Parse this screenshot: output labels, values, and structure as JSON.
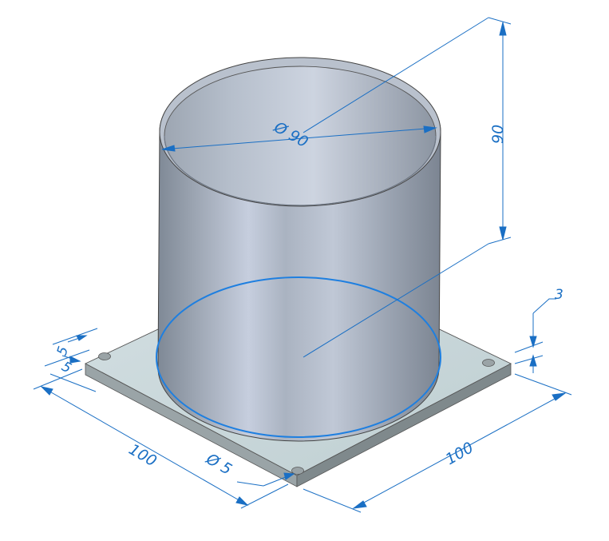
{
  "drawing": {
    "colors": {
      "dimension": "#1a6fc4",
      "plate_top": "#c9d8da",
      "plate_edge": "#8d9699",
      "cylinder_dark": "#7e8894",
      "cylinder_light": "#c3cbd8",
      "highlight_circle": "#1e7fe0"
    },
    "dimensions": {
      "cylinder_diameter": "Ø 90",
      "cylinder_height": "90",
      "plate_thickness": "3",
      "hole_offset_a": "5",
      "hole_offset_b": "5",
      "plate_length": "100",
      "plate_width": "100",
      "hole_diameter": "Ø 5"
    }
  }
}
